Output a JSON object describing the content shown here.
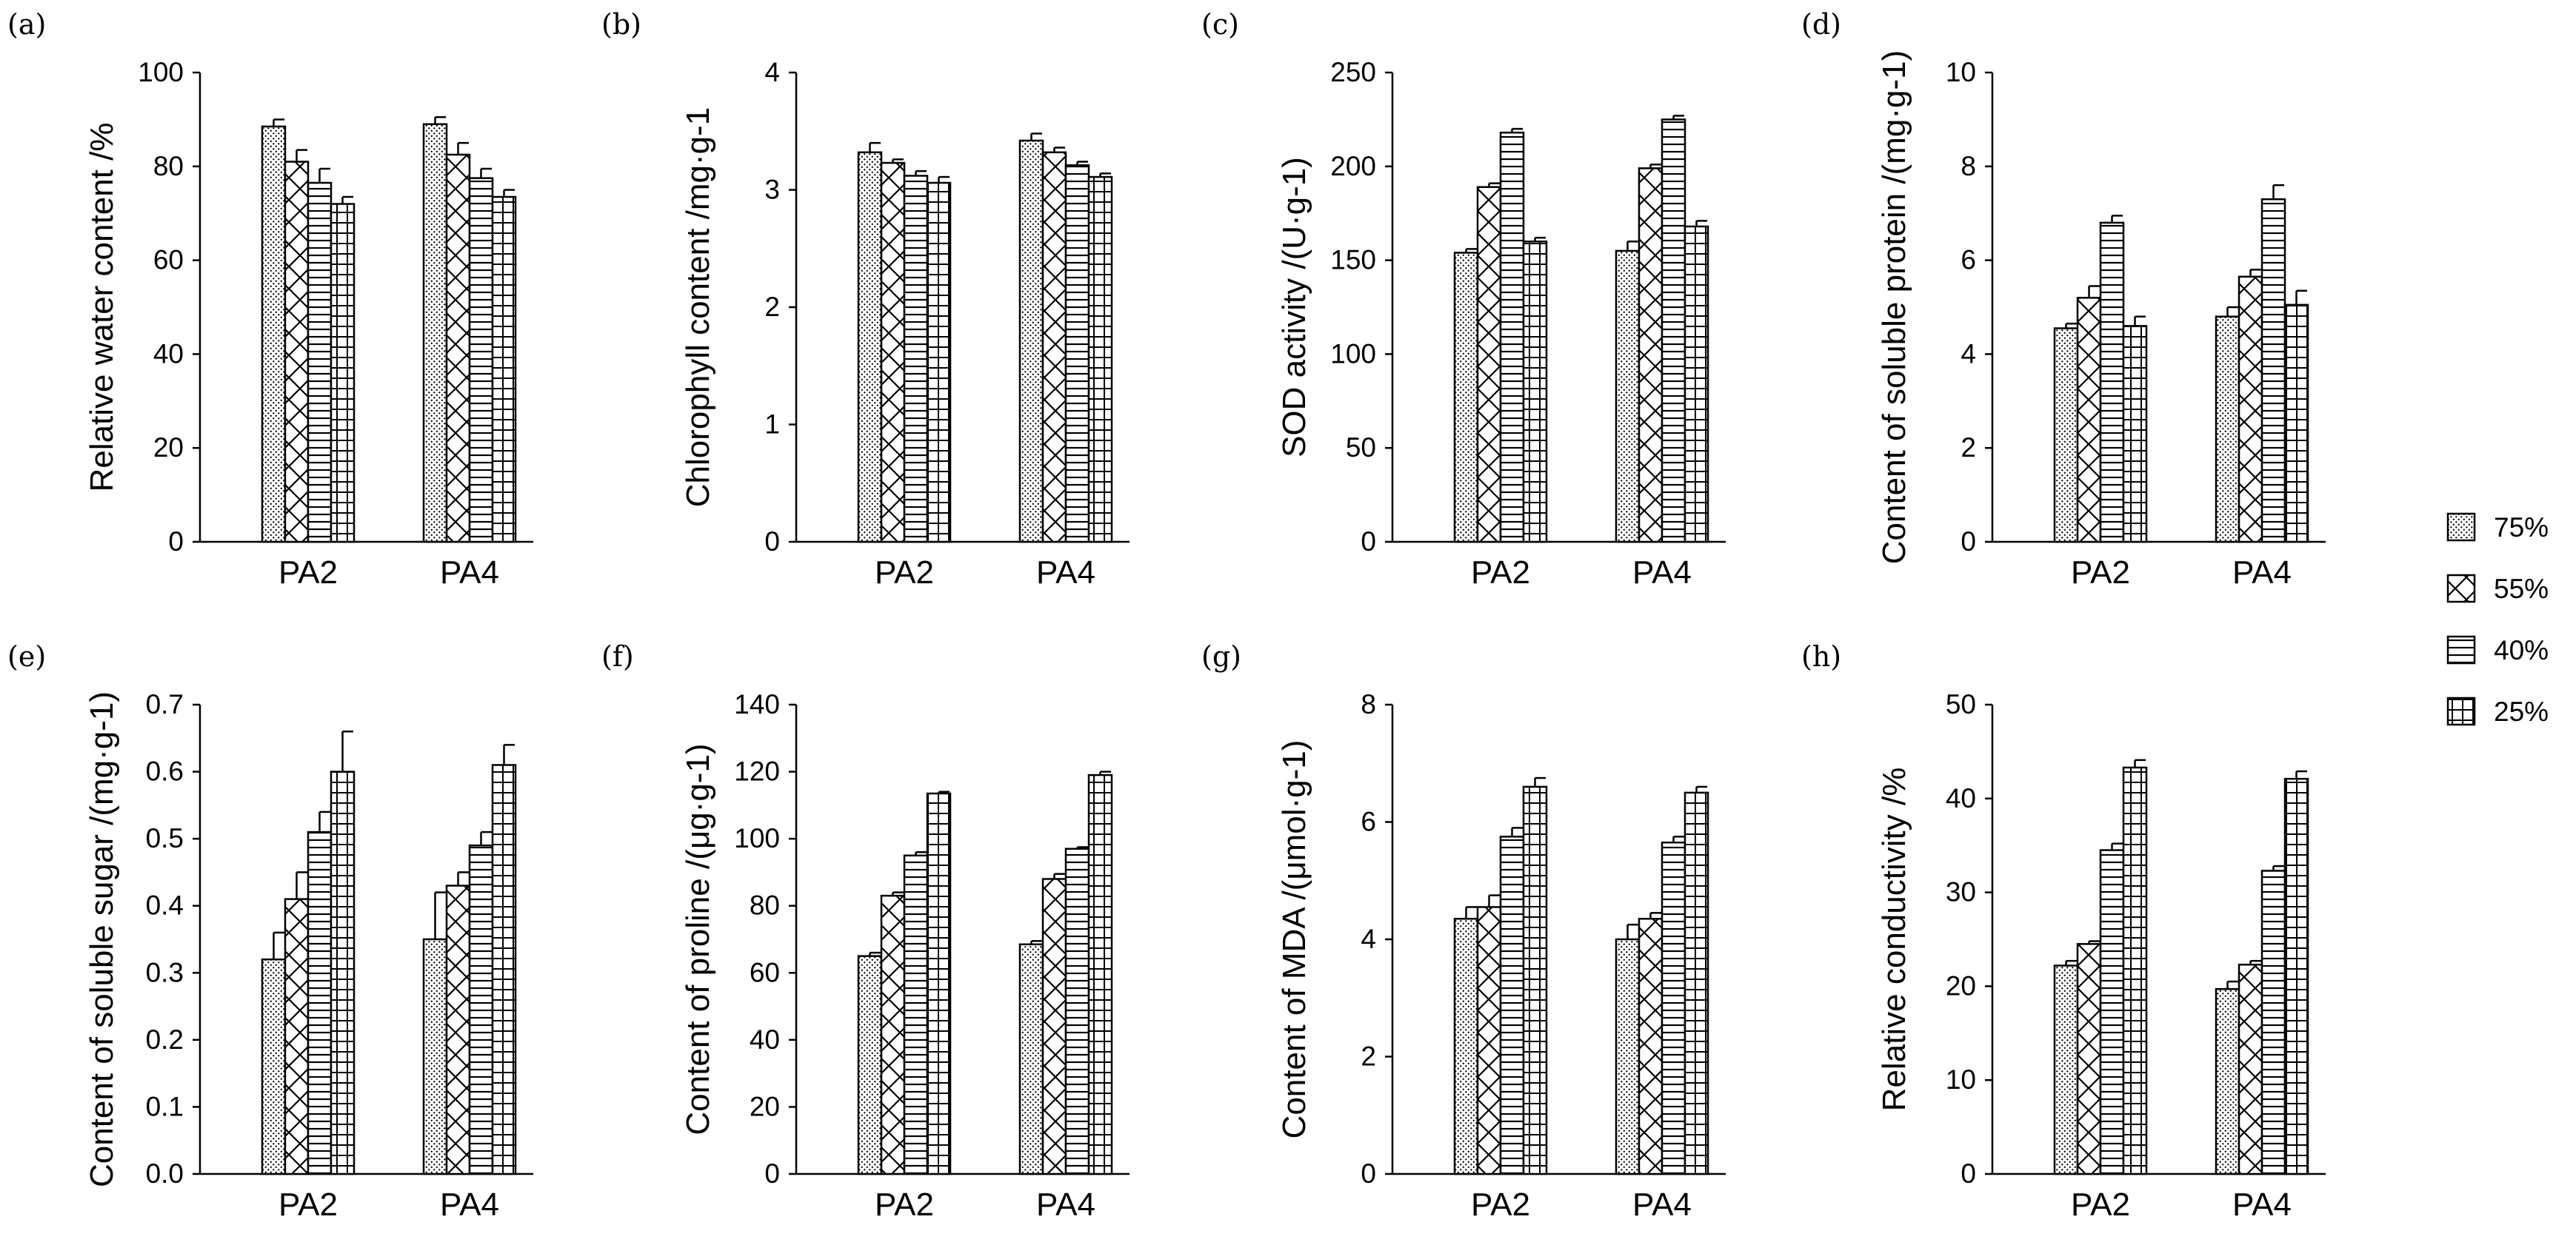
{
  "legend": {
    "items": [
      {
        "label": "75%",
        "pattern": "dots"
      },
      {
        "label": "55%",
        "pattern": "cross"
      },
      {
        "label": "40%",
        "pattern": "hlines"
      },
      {
        "label": "25%",
        "pattern": "grid"
      }
    ]
  },
  "chart_data": [
    {
      "type": "bar",
      "tag": "(a)",
      "ylabel": "Relative water content /%",
      "categories": [
        "PA2",
        "PA4"
      ],
      "ylim": [
        0,
        100
      ],
      "yticks": [
        "0",
        "20",
        "40",
        "60",
        "80",
        "100"
      ],
      "series": [
        {
          "name": "75%",
          "values": [
            88.5,
            89
          ],
          "errors": [
            1.5,
            1.5
          ]
        },
        {
          "name": "55%",
          "values": [
            81,
            82.5
          ],
          "errors": [
            2.5,
            2.5
          ]
        },
        {
          "name": "40%",
          "values": [
            76.5,
            77.5
          ],
          "errors": [
            3,
            2
          ]
        },
        {
          "name": "25%",
          "values": [
            72,
            73.5
          ],
          "errors": [
            1.5,
            1.5
          ]
        }
      ]
    },
    {
      "type": "bar",
      "tag": "(b)",
      "ylabel": "Chlorophyll content /mg·g-1",
      "categories": [
        "PA2",
        "PA4"
      ],
      "ylim": [
        0,
        4
      ],
      "yticks": [
        "0",
        "1",
        "2",
        "3",
        "4"
      ],
      "series": [
        {
          "name": "75%",
          "values": [
            3.32,
            3.42
          ],
          "errors": [
            0.08,
            0.06
          ]
        },
        {
          "name": "55%",
          "values": [
            3.23,
            3.32
          ],
          "errors": [
            0.03,
            0.04
          ]
        },
        {
          "name": "40%",
          "values": [
            3.12,
            3.21
          ],
          "errors": [
            0.04,
            0.03
          ]
        },
        {
          "name": "25%",
          "values": [
            3.06,
            3.11
          ],
          "errors": [
            0.05,
            0.03
          ]
        }
      ]
    },
    {
      "type": "bar",
      "tag": "(c)",
      "ylabel": "SOD activity /(U·g-1)",
      "categories": [
        "PA2",
        "PA4"
      ],
      "ylim": [
        0,
        250
      ],
      "yticks": [
        "0",
        "50",
        "100",
        "150",
        "200",
        "250"
      ],
      "series": [
        {
          "name": "75%",
          "values": [
            154,
            155
          ],
          "errors": [
            2,
            5
          ]
        },
        {
          "name": "55%",
          "values": [
            189,
            199
          ],
          "errors": [
            2,
            2
          ]
        },
        {
          "name": "40%",
          "values": [
            218,
            225
          ],
          "errors": [
            2,
            2
          ]
        },
        {
          "name": "25%",
          "values": [
            160,
            168
          ],
          "errors": [
            2,
            3
          ]
        }
      ]
    },
    {
      "type": "bar",
      "tag": "(d)",
      "ylabel": "Content of soluble protein /(mg·g-1)",
      "categories": [
        "PA2",
        "PA4"
      ],
      "ylim": [
        0,
        10
      ],
      "yticks": [
        "0",
        "2",
        "4",
        "6",
        "8",
        "10"
      ],
      "series": [
        {
          "name": "75%",
          "values": [
            4.55,
            4.8
          ],
          "errors": [
            0.1,
            0.2
          ]
        },
        {
          "name": "55%",
          "values": [
            5.2,
            5.65
          ],
          "errors": [
            0.25,
            0.15
          ]
        },
        {
          "name": "40%",
          "values": [
            6.8,
            7.3
          ],
          "errors": [
            0.15,
            0.3
          ]
        },
        {
          "name": "25%",
          "values": [
            4.6,
            5.05
          ],
          "errors": [
            0.2,
            0.3
          ]
        }
      ]
    },
    {
      "type": "bar",
      "tag": "(e)",
      "ylabel": "Content of soluble sugar /(mg·g-1)",
      "categories": [
        "PA2",
        "PA4"
      ],
      "ylim": [
        0,
        0.7
      ],
      "yticks": [
        "0.0",
        "0.1",
        "0.2",
        "0.3",
        "0.4",
        "0.5",
        "0.6",
        "0.7"
      ],
      "series": [
        {
          "name": "75%",
          "values": [
            0.32,
            0.35
          ],
          "errors": [
            0.04,
            0.07
          ]
        },
        {
          "name": "55%",
          "values": [
            0.41,
            0.43
          ],
          "errors": [
            0.04,
            0.02
          ]
        },
        {
          "name": "40%",
          "values": [
            0.51,
            0.49
          ],
          "errors": [
            0.03,
            0.02
          ]
        },
        {
          "name": "25%",
          "values": [
            0.6,
            0.61
          ],
          "errors": [
            0.06,
            0.03
          ]
        }
      ]
    },
    {
      "type": "bar",
      "tag": "(f)",
      "ylabel": "Content of proline /(μg·g-1)",
      "categories": [
        "PA2",
        "PA4"
      ],
      "ylim": [
        0,
        140
      ],
      "yticks": [
        "0",
        "20",
        "40",
        "60",
        "80",
        "100",
        "120",
        "140"
      ],
      "series": [
        {
          "name": "75%",
          "values": [
            65,
            68.5
          ],
          "errors": [
            1,
            1
          ]
        },
        {
          "name": "55%",
          "values": [
            83,
            88
          ],
          "errors": [
            1,
            1.5
          ]
        },
        {
          "name": "40%",
          "values": [
            95,
            97
          ],
          "errors": [
            1,
            0.5
          ]
        },
        {
          "name": "25%",
          "values": [
            113.5,
            119
          ],
          "errors": [
            0.5,
            1
          ]
        }
      ]
    },
    {
      "type": "bar",
      "tag": "(g)",
      "ylabel": "Content of MDA /(μmol·g-1)",
      "categories": [
        "PA2",
        "PA4"
      ],
      "ylim": [
        0,
        8
      ],
      "yticks": [
        "0",
        "2",
        "4",
        "6",
        "8"
      ],
      "series": [
        {
          "name": "75%",
          "values": [
            4.35,
            4.0
          ],
          "errors": [
            0.2,
            0.25
          ]
        },
        {
          "name": "55%",
          "values": [
            4.55,
            4.35
          ],
          "errors": [
            0.2,
            0.1
          ]
        },
        {
          "name": "40%",
          "values": [
            5.75,
            5.65
          ],
          "errors": [
            0.15,
            0.1
          ]
        },
        {
          "name": "25%",
          "values": [
            6.6,
            6.5
          ],
          "errors": [
            0.15,
            0.1
          ]
        }
      ]
    },
    {
      "type": "bar",
      "tag": "(h)",
      "ylabel": "Relative conductivity /%",
      "categories": [
        "PA2",
        "PA4"
      ],
      "ylim": [
        0,
        50
      ],
      "yticks": [
        "0",
        "10",
        "20",
        "30",
        "40",
        "50"
      ],
      "series": [
        {
          "name": "75%",
          "values": [
            22.2,
            19.7
          ],
          "errors": [
            0.5,
            0.8
          ]
        },
        {
          "name": "55%",
          "values": [
            24.5,
            22.3
          ],
          "errors": [
            0.3,
            0.4
          ]
        },
        {
          "name": "40%",
          "values": [
            34.5,
            32.3
          ],
          "errors": [
            0.7,
            0.5
          ]
        },
        {
          "name": "25%",
          "values": [
            43.3,
            42.1
          ],
          "errors": [
            0.8,
            0.8
          ]
        }
      ]
    }
  ]
}
